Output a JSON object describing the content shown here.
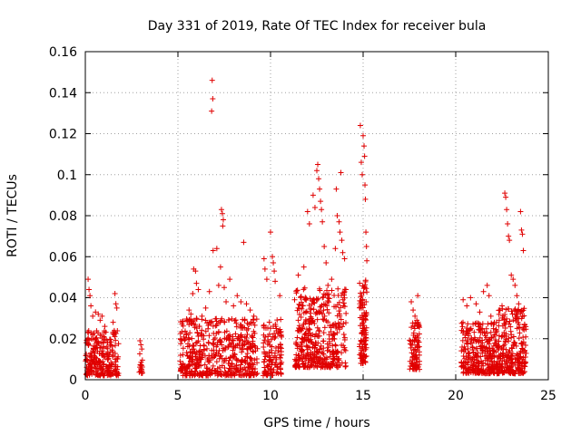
{
  "chart_data": {
    "type": "scatter",
    "title": "Day 331 of 2019, Rate Of TEC Index for receiver bula",
    "xlabel": "GPS time / hours",
    "ylabel": "ROTI / TECUs",
    "xlim": [
      0,
      25
    ],
    "ylim": [
      0,
      0.16
    ],
    "xticks": [
      "0",
      "5",
      "10",
      "15",
      "20",
      "25"
    ],
    "yticks": [
      "0",
      "0.02",
      "0.04",
      "0.06",
      "0.08",
      "0.1",
      "0.12",
      "0.14",
      "0.16"
    ],
    "xtick_values": [
      0,
      5,
      10,
      15,
      20,
      25
    ],
    "ytick_values": [
      0,
      0.02,
      0.04,
      0.06,
      0.08,
      0.1,
      0.12,
      0.14,
      0.16
    ],
    "grid": true,
    "marker": "+",
    "series": [
      {
        "color": "#e00000",
        "points": [
          [
            0.15,
            0.049
          ],
          [
            0.2,
            0.044
          ],
          [
            0.25,
            0.041
          ],
          [
            0.3,
            0.036
          ],
          [
            0.4,
            0.031
          ],
          [
            0.55,
            0.033
          ],
          [
            0.7,
            0.032
          ],
          [
            0.8,
            0.029
          ],
          [
            0.9,
            0.031
          ],
          [
            1.05,
            0.026
          ],
          [
            1.2,
            0.018
          ],
          [
            1.5,
            0.028
          ],
          [
            1.6,
            0.042
          ],
          [
            1.65,
            0.037
          ],
          [
            1.7,
            0.035
          ],
          [
            2.95,
            0.019
          ],
          [
            3.0,
            0.017
          ],
          [
            3.05,
            0.015
          ],
          [
            5.2,
            0.019
          ],
          [
            5.5,
            0.029
          ],
          [
            5.6,
            0.034
          ],
          [
            5.7,
            0.032
          ],
          [
            5.8,
            0.042
          ],
          [
            5.85,
            0.054
          ],
          [
            5.95,
            0.053
          ],
          [
            6.0,
            0.047
          ],
          [
            6.1,
            0.044
          ],
          [
            6.3,
            0.031
          ],
          [
            6.5,
            0.035
          ],
          [
            6.7,
            0.043
          ],
          [
            6.85,
            0.146
          ],
          [
            6.88,
            0.137
          ],
          [
            6.82,
            0.131
          ],
          [
            6.9,
            0.063
          ],
          [
            7.1,
            0.064
          ],
          [
            7.2,
            0.046
          ],
          [
            7.3,
            0.055
          ],
          [
            7.35,
            0.083
          ],
          [
            7.4,
            0.081
          ],
          [
            7.45,
            0.078
          ],
          [
            7.42,
            0.075
          ],
          [
            7.5,
            0.045
          ],
          [
            7.6,
            0.038
          ],
          [
            7.8,
            0.049
          ],
          [
            8.0,
            0.036
          ],
          [
            8.2,
            0.041
          ],
          [
            8.4,
            0.038
          ],
          [
            8.55,
            0.067
          ],
          [
            8.7,
            0.037
          ],
          [
            8.9,
            0.034
          ],
          [
            9.1,
            0.031
          ],
          [
            9.65,
            0.059
          ],
          [
            9.7,
            0.054
          ],
          [
            9.8,
            0.049
          ],
          [
            10.0,
            0.072
          ],
          [
            10.1,
            0.06
          ],
          [
            10.15,
            0.057
          ],
          [
            10.2,
            0.053
          ],
          [
            10.25,
            0.048
          ],
          [
            10.5,
            0.041
          ],
          [
            11.3,
            0.039
          ],
          [
            11.5,
            0.051
          ],
          [
            11.8,
            0.055
          ],
          [
            12.0,
            0.082
          ],
          [
            12.1,
            0.076
          ],
          [
            12.3,
            0.09
          ],
          [
            12.4,
            0.084
          ],
          [
            12.5,
            0.102
          ],
          [
            12.55,
            0.105
          ],
          [
            12.6,
            0.098
          ],
          [
            12.65,
            0.093
          ],
          [
            12.7,
            0.087
          ],
          [
            12.75,
            0.083
          ],
          [
            12.8,
            0.077
          ],
          [
            12.9,
            0.065
          ],
          [
            13.0,
            0.057
          ],
          [
            13.1,
            0.046
          ],
          [
            13.3,
            0.049
          ],
          [
            13.5,
            0.064
          ],
          [
            13.55,
            0.093
          ],
          [
            13.6,
            0.08
          ],
          [
            13.7,
            0.077
          ],
          [
            13.75,
            0.072
          ],
          [
            13.8,
            0.101
          ],
          [
            13.85,
            0.068
          ],
          [
            13.9,
            0.062
          ],
          [
            14.0,
            0.059
          ],
          [
            14.85,
            0.124
          ],
          [
            14.9,
            0.106
          ],
          [
            14.95,
            0.1
          ],
          [
            15.0,
            0.119
          ],
          [
            15.05,
            0.114
          ],
          [
            15.08,
            0.109
          ],
          [
            15.1,
            0.095
          ],
          [
            15.12,
            0.088
          ],
          [
            15.15,
            0.072
          ],
          [
            15.18,
            0.065
          ],
          [
            15.2,
            0.058
          ],
          [
            17.6,
            0.038
          ],
          [
            17.7,
            0.034
          ],
          [
            17.8,
            0.031
          ],
          [
            17.9,
            0.029
          ],
          [
            17.95,
            0.041
          ],
          [
            18.0,
            0.027
          ],
          [
            20.4,
            0.039
          ],
          [
            20.6,
            0.036
          ],
          [
            20.8,
            0.04
          ],
          [
            21.1,
            0.037
          ],
          [
            21.3,
            0.033
          ],
          [
            21.5,
            0.043
          ],
          [
            21.7,
            0.046
          ],
          [
            21.8,
            0.041
          ],
          [
            21.9,
            0.031
          ],
          [
            22.2,
            0.028
          ],
          [
            22.5,
            0.036
          ],
          [
            22.65,
            0.091
          ],
          [
            22.7,
            0.089
          ],
          [
            22.75,
            0.083
          ],
          [
            22.8,
            0.076
          ],
          [
            22.85,
            0.07
          ],
          [
            22.9,
            0.068
          ],
          [
            23.0,
            0.051
          ],
          [
            23.1,
            0.049
          ],
          [
            23.2,
            0.046
          ],
          [
            23.3,
            0.041
          ],
          [
            23.4,
            0.037
          ],
          [
            23.5,
            0.082
          ],
          [
            23.55,
            0.073
          ],
          [
            23.6,
            0.071
          ],
          [
            23.65,
            0.063
          ]
        ],
        "dense_bands": [
          {
            "x": [
              0.0,
              1.8
            ],
            "y": [
              0.002,
              0.024
            ],
            "n": 260
          },
          {
            "x": [
              2.9,
              3.1
            ],
            "y": [
              0.003,
              0.013
            ],
            "n": 20
          },
          {
            "x": [
              5.1,
              9.3
            ],
            "y": [
              0.002,
              0.03
            ],
            "n": 520
          },
          {
            "x": [
              9.6,
              10.6
            ],
            "y": [
              0.002,
              0.03
            ],
            "n": 120
          },
          {
            "x": [
              11.3,
              14.1
            ],
            "y": [
              0.006,
              0.045
            ],
            "n": 420
          },
          {
            "x": [
              14.8,
              15.2
            ],
            "y": [
              0.008,
              0.05
            ],
            "n": 110
          },
          {
            "x": [
              17.5,
              18.05
            ],
            "y": [
              0.005,
              0.028
            ],
            "n": 90
          },
          {
            "x": [
              20.3,
              22.3
            ],
            "y": [
              0.003,
              0.028
            ],
            "n": 300
          },
          {
            "x": [
              22.3,
              23.8
            ],
            "y": [
              0.003,
              0.035
            ],
            "n": 260
          }
        ]
      }
    ]
  }
}
